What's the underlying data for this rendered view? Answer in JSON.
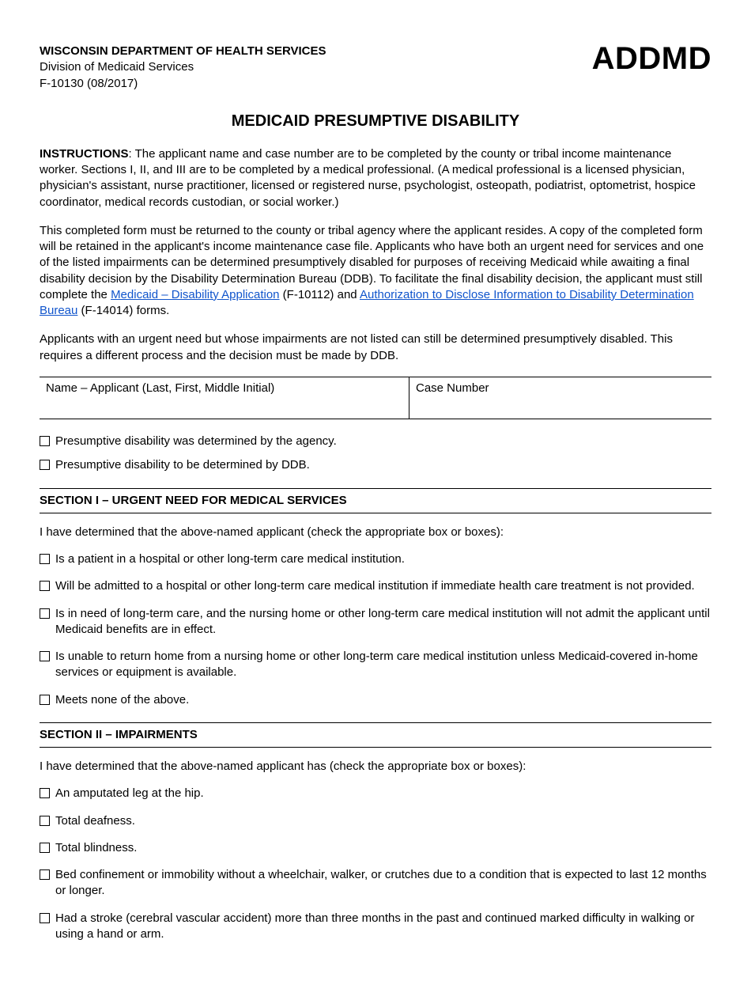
{
  "header": {
    "department": "WISCONSIN DEPARTMENT OF HEALTH SERVICES",
    "division": "Division of Medicaid Services",
    "form_number": "F-10130  (08/2017)",
    "code": "ADDMD"
  },
  "title": "MEDICAID PRESUMPTIVE DISABILITY",
  "instructions": {
    "label": "INSTRUCTIONS",
    "p1": ": The applicant name and case number are to be completed by the county or tribal income maintenance worker. Sections I, II, and III are to be completed by a medical professional. (A medical professional is a licensed physician, physician's assistant, nurse practitioner, licensed or registered nurse, psychologist, osteopath, podiatrist, optometrist, hospice coordinator, medical records custodian, or social worker.)",
    "p2a": "This completed form must be returned to the county or tribal agency where the applicant resides. A copy of the completed form will be retained in the applicant's income maintenance case file. Applicants who have both an urgent need for services and one of the listed impairments can be determined presumptively disabled for purposes of receiving Medicaid while awaiting a final disability decision by the Disability Determination Bureau (DDB). To facilitate the final disability decision, the applicant must still complete the ",
    "link1": "Medicaid – Disability Application",
    "p2b": " (F-10112) and ",
    "link2": "Authorization to Disclose Information to Disability Determination Bureau",
    "p2c": " (F-14014) forms.",
    "p3": "Applicants with an urgent need but whose impairments are not listed can still be determined presumptively disabled. This requires a different process and the decision must be made by DDB."
  },
  "fields": {
    "name_label": "Name – Applicant (Last, First, Middle Initial)",
    "case_label": "Case Number"
  },
  "top_checks": [
    "Presumptive disability was determined by the agency.",
    "Presumptive disability to be determined by DDB."
  ],
  "section1": {
    "heading": "SECTION I – URGENT NEED FOR MEDICAL SERVICES",
    "intro": "I have determined that the above-named applicant (check the appropriate box or boxes):",
    "items": [
      "Is a patient in a hospital or other long-term care medical institution.",
      "Will be admitted to a hospital or other long-term care medical institution if immediate health care treatment is not provided.",
      "Is in need of long-term care, and the nursing home or other long-term care medical institution will not admit the applicant until Medicaid benefits are in effect.",
      "Is unable to return home from a nursing home or other long-term care medical institution unless Medicaid-covered in-home services or equipment is available.",
      "Meets none of the above."
    ]
  },
  "section2": {
    "heading": "SECTION II – IMPAIRMENTS",
    "intro": "I have determined that the above-named applicant has (check the appropriate box or boxes):",
    "items": [
      "An amputated leg at the hip.",
      "Total deafness.",
      "Total blindness.",
      "Bed confinement or immobility without a wheelchair, walker, or crutches due to a condition that is expected to last 12 months or longer.",
      "Had a stroke (cerebral vascular accident) more than three months in the past and continued marked difficulty in walking or using a hand or arm."
    ]
  }
}
